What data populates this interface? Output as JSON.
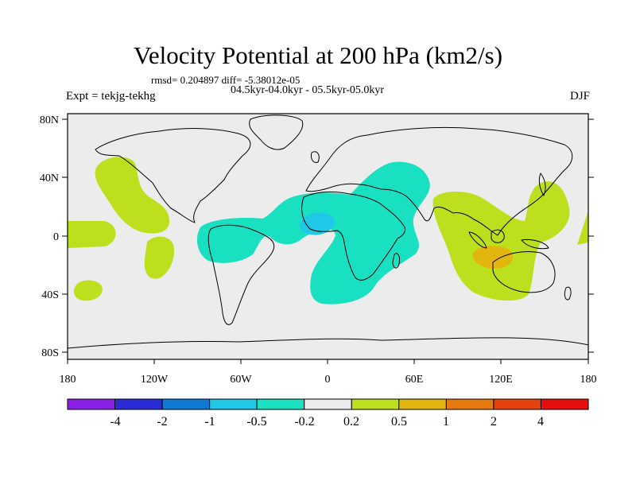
{
  "title": "Velocity Potential at 200 hPa (km2/s)",
  "stats_line": "rmsd= 0.204897 diff= -5.38012e-05",
  "period_line": "04.5kyr-04.0kyr - 05.5kyr-05.0kyr",
  "experiment": "Expt = tekjg-tekhg",
  "season": "DJF",
  "map": {
    "lat_ticks": [
      "80N",
      "40N",
      "0",
      "40S",
      "80S"
    ],
    "lon_ticks": [
      "180",
      "120W",
      "60W",
      "0",
      "60E",
      "120E",
      "180"
    ]
  },
  "colorbar": {
    "colors": [
      "#8a1fe6",
      "#2a2ad6",
      "#0f7ad6",
      "#1ec8e6",
      "#18e0c0",
      "#ececec",
      "#bde01e",
      "#e2b60e",
      "#e67a0e",
      "#e6420e",
      "#e60e0e"
    ],
    "labels": [
      "-4",
      "-2",
      "-1",
      "-0.5",
      "-0.2",
      "0.2",
      "0.5",
      "1",
      "2",
      "4"
    ]
  }
}
